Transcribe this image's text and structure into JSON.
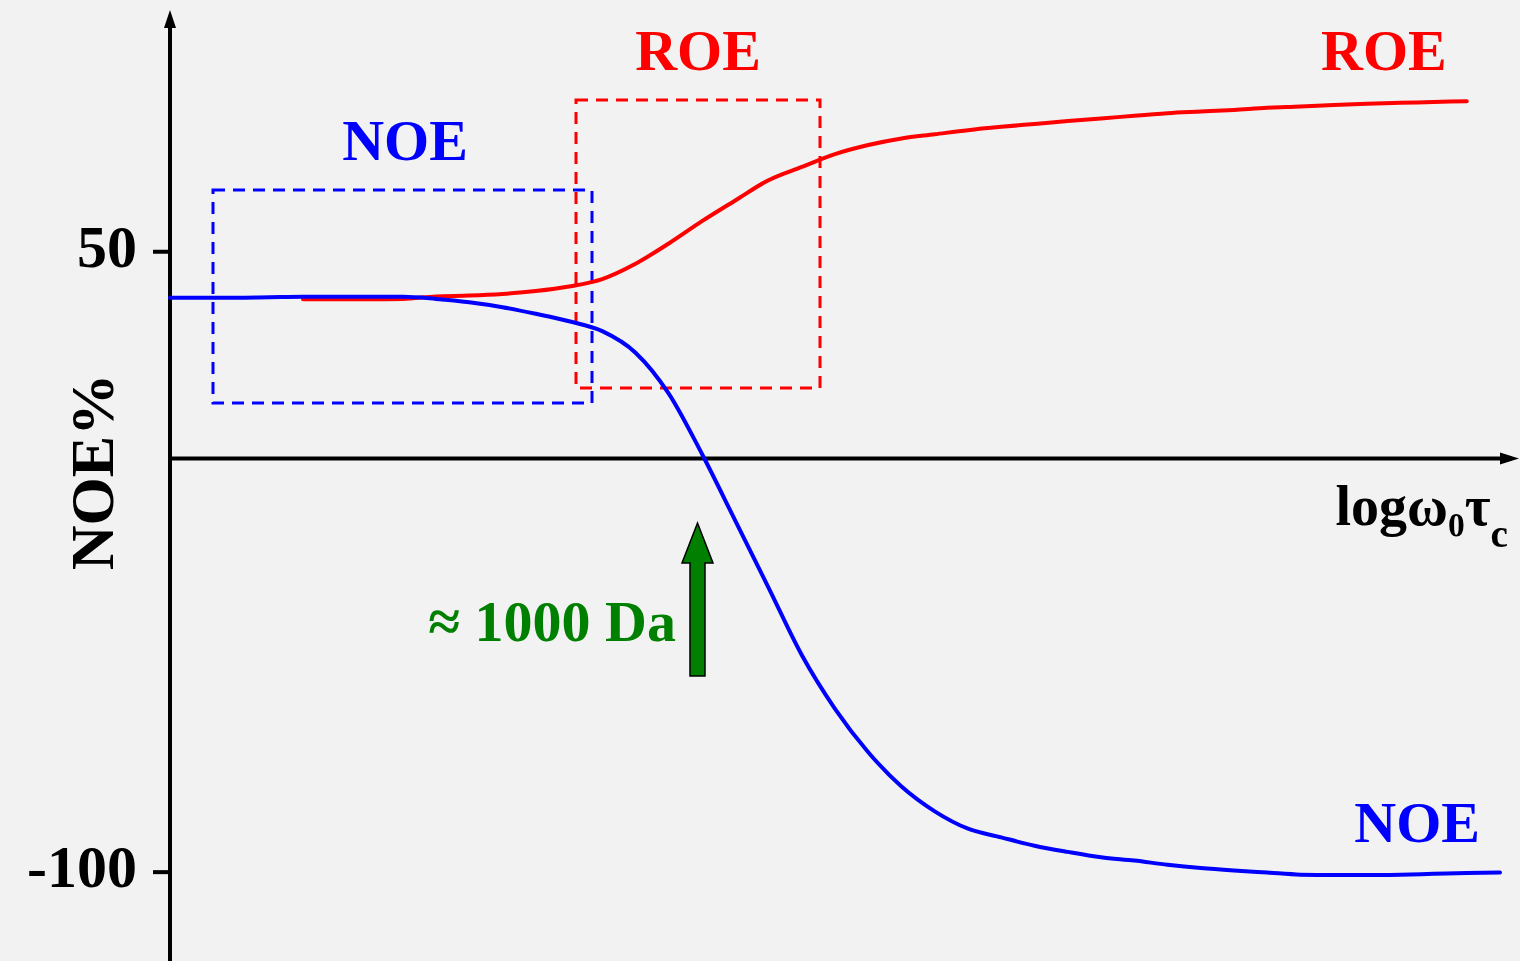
{
  "chart_data": {
    "type": "line",
    "xlabel": "logω₀τ$_{c}$",
    "ylabel": "NOE%",
    "categories": [
      null,
      null,
      null,
      null,
      null,
      null,
      null,
      null,
      null,
      null,
      null,
      null,
      null,
      null,
      null,
      null,
      null,
      null,
      null,
      null,
      null,
      null,
      null,
      null,
      null,
      null,
      null,
      null,
      null,
      null,
      null,
      null,
      null,
      null,
      null,
      null,
      null,
      null,
      null,
      null,
      null
    ],
    "series": [
      {
        "name": "ROE",
        "color": "#ff0000",
        "values": [
          null,
          null,
          null,
          null,
          38.5,
          38.5,
          38.5,
          38.6,
          39.2,
          39.4,
          39.8,
          40.5,
          41.6,
          43.4,
          47.1,
          52.0,
          57.4,
          62.4,
          67.3,
          70.5,
          73.6,
          75.8,
          77.4,
          78.4,
          79.4,
          80.2,
          80.9,
          81.6,
          82.2,
          82.9,
          83.5,
          83.9,
          84.3,
          84.8,
          85.1,
          85.5,
          85.8,
          86.0,
          86.2,
          86.4,
          null
        ]
      },
      {
        "name": "NOE",
        "color": "#0000ff",
        "values": [
          38.9,
          38.9,
          38.9,
          39.0,
          39.1,
          39.1,
          39.1,
          39.1,
          38.6,
          37.8,
          36.6,
          35.0,
          33.2,
          30.8,
          25.6,
          15.7,
          1.1,
          -15.0,
          -31.2,
          -47.5,
          -60.5,
          -71.0,
          -79.3,
          -85.3,
          -89.5,
          -91.6,
          -93.6,
          -95.1,
          -96.4,
          -97.2,
          -98.2,
          -99.0,
          -99.6,
          -100.1,
          -100.6,
          -100.7,
          -100.7,
          -100.6,
          -100.4,
          -100.2,
          -100.1
        ]
      }
    ],
    "ylim": [
      -121,
      107
    ],
    "yticks": [
      -100,
      50
    ],
    "tick_labels": "y",
    "annotations": [
      "NOE",
      "ROE",
      "≈ 1000 Da"
    ]
  }
}
